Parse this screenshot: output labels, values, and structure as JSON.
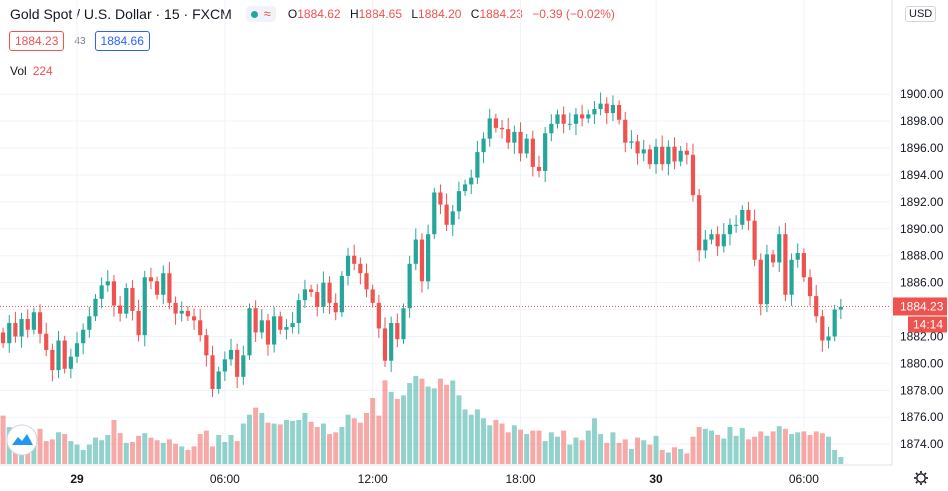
{
  "header": {
    "title": "Gold Spot / U.S. Dollar · 15 · FXCM",
    "ohlc": [
      {
        "key": "O",
        "value": "1884.62"
      },
      {
        "key": "H",
        "value": "1884.65"
      },
      {
        "key": "L",
        "value": "1884.20"
      },
      {
        "key": "C",
        "value": "1884.23"
      }
    ],
    "change": "−0.39 (−0.02%)",
    "bid": "1884.23",
    "spread": "43",
    "ask": "1884.66",
    "volume_label": "Vol",
    "volume_value": "224",
    "currency_button": "USD"
  },
  "chart_data": {
    "type": "candlestick",
    "symbol": "Gold Spot / U.S. Dollar",
    "interval": "15",
    "exchange": "FXCM",
    "currency": "USD",
    "ylim": [
      1872.6,
      1907.0
    ],
    "y_ticks": [
      "1874.00",
      "1876.00",
      "1878.00",
      "1880.00",
      "1882.00",
      "1884.00",
      "1886.00",
      "1888.00",
      "1890.00",
      "1892.00",
      "1894.00",
      "1896.00",
      "1898.00",
      "1900.00"
    ],
    "y_tick_values": [
      1874,
      1876,
      1878,
      1880,
      1882,
      1884,
      1886,
      1888,
      1890,
      1892,
      1894,
      1896,
      1898,
      1900
    ],
    "x_ticks": [
      "29",
      "06:00",
      "12:00",
      "18:00",
      "30",
      "06:00"
    ],
    "x_tick_index": [
      12,
      36,
      60,
      84,
      106,
      130
    ],
    "last_price": "1884.23",
    "last_price_value": 1884.23,
    "countdown": "14:14",
    "colors": {
      "up": "#26a69a",
      "down": "#ef5350",
      "up_volume": "#26a69a",
      "down_volume": "#ef5350"
    },
    "closes": [
      1881.5,
      1883.0,
      1882.0,
      1883.3,
      1882.5,
      1883.8,
      1882.2,
      1881.0,
      1879.5,
      1881.7,
      1879.6,
      1880.5,
      1881.5,
      1882.5,
      1883.5,
      1884.8,
      1885.8,
      1886.1,
      1884.3,
      1883.7,
      1885.6,
      1883.9,
      1882.1,
      1886.4,
      1886.1,
      1885.1,
      1886.7,
      1884.5,
      1883.7,
      1883.9,
      1883.5,
      1883.2,
      1882.1,
      1880.6,
      1878.1,
      1879.4,
      1880.3,
      1881.0,
      1879.0,
      1880.6,
      1884.1,
      1882.3,
      1883.2,
      1881.4,
      1883.5,
      1882.5,
      1882.7,
      1883.0,
      1884.7,
      1885.5,
      1885.3,
      1884.2,
      1886.0,
      1884.5,
      1883.8,
      1886.5,
      1888.0,
      1887.4,
      1886.7,
      1885.5,
      1884.5,
      1882.6,
      1880.2,
      1883.0,
      1881.8,
      1884.1,
      1887.4,
      1889.2,
      1886.1,
      1889.6,
      1892.7,
      1891.8,
      1890.3,
      1891.3,
      1892.8,
      1893.3,
      1893.8,
      1895.7,
      1896.7,
      1898.2,
      1897.5,
      1897.4,
      1896.4,
      1897.2,
      1895.6,
      1896.7,
      1894.6,
      1894.3,
      1897.1,
      1897.8,
      1898.5,
      1897.8,
      1897.8,
      1898.5,
      1898.2,
      1898.5,
      1898.9,
      1899.3,
      1898.6,
      1899.2,
      1898.1,
      1896.4,
      1896.5,
      1895.6,
      1895.9,
      1894.8,
      1896.1,
      1894.8,
      1896.1,
      1895.0,
      1895.8,
      1895.5,
      1892.5,
      1888.4,
      1889.2,
      1889.6,
      1888.7,
      1889.6,
      1890.3,
      1890.3,
      1891.4,
      1890.6,
      1887.7,
      1884.4,
      1888.1,
      1887.5,
      1889.6,
      1885.1,
      1887.7,
      1888.2,
      1886.4,
      1885.0,
      1883.5,
      1881.7,
      1882.0,
      1884.0,
      1884.2
    ],
    "volume_levels": [
      0.55,
      0.42,
      0.28,
      0.3,
      0.26,
      0.32,
      0.4,
      0.26,
      0.28,
      0.36,
      0.34,
      0.26,
      0.22,
      0.16,
      0.22,
      0.3,
      0.27,
      0.33,
      0.5,
      0.35,
      0.24,
      0.25,
      0.32,
      0.35,
      0.3,
      0.27,
      0.24,
      0.28,
      0.23,
      0.2,
      0.16,
      0.2,
      0.34,
      0.38,
      0.2,
      0.33,
      0.25,
      0.33,
      0.26,
      0.46,
      0.56,
      0.64,
      0.58,
      0.47,
      0.46,
      0.45,
      0.5,
      0.49,
      0.5,
      0.58,
      0.48,
      0.42,
      0.46,
      0.34,
      0.36,
      0.42,
      0.56,
      0.52,
      0.47,
      0.58,
      0.75,
      0.55,
      0.95,
      0.82,
      0.74,
      0.78,
      0.92,
      1.0,
      0.97,
      0.88,
      0.86,
      0.97,
      0.9,
      0.95,
      0.78,
      0.62,
      0.56,
      0.62,
      0.52,
      0.44,
      0.5,
      0.46,
      0.36,
      0.44,
      0.39,
      0.34,
      0.38,
      0.38,
      0.26,
      0.36,
      0.31,
      0.38,
      0.22,
      0.3,
      0.27,
      0.38,
      0.52,
      0.34,
      0.24,
      0.36,
      0.24,
      0.28,
      0.17,
      0.3,
      0.27,
      0.22,
      0.32,
      0.16,
      0.13,
      0.19,
      0.17,
      0.12,
      0.31,
      0.42,
      0.4,
      0.38,
      0.33,
      0.29,
      0.42,
      0.32,
      0.41,
      0.28,
      0.31,
      0.37,
      0.32,
      0.37,
      0.43,
      0.4,
      0.34,
      0.36,
      0.37,
      0.33,
      0.37,
      0.35,
      0.31,
      0.16,
      0.08
    ]
  }
}
